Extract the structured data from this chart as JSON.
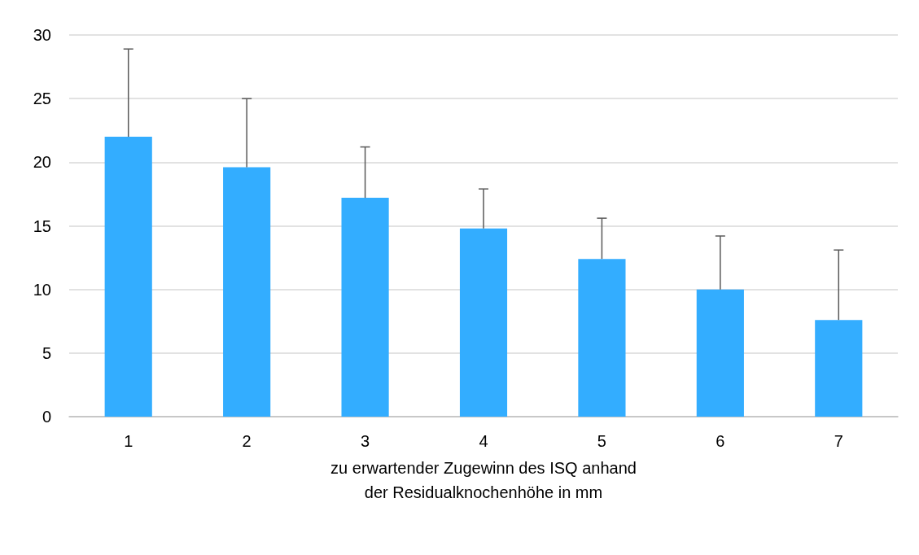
{
  "chart_data": {
    "type": "bar",
    "xlabel": "zu erwartender Zugewinn des ISQ anhand\nder Residualknochenhöhe in mm",
    "categories": [
      "1",
      "2",
      "3",
      "4",
      "5",
      "6",
      "7"
    ],
    "values": [
      22,
      19.6,
      17.2,
      14.8,
      12.4,
      10,
      7.6
    ],
    "errors": [
      [
        22,
        28.9
      ],
      [
        19.6,
        25
      ],
      [
        17.2,
        21.2
      ],
      [
        14.8,
        17.9
      ],
      [
        12.4,
        15.6
      ],
      [
        10,
        14.2
      ],
      [
        7.6,
        13.1
      ]
    ],
    "color": "#33adff",
    "ylim": [
      0,
      30
    ],
    "yticks": [
      0,
      5,
      10,
      15,
      20,
      25,
      30
    ],
    "grid": "y"
  }
}
